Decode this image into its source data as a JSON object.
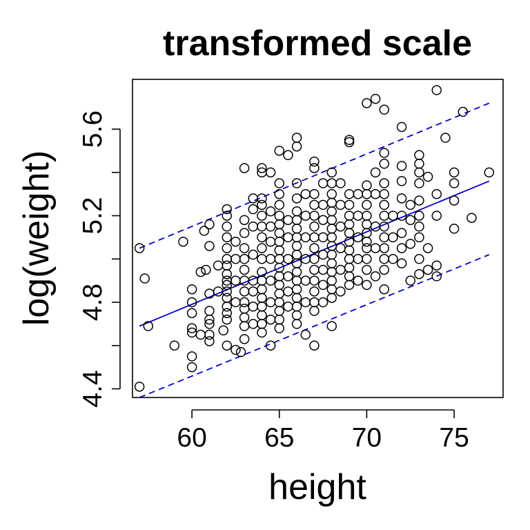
{
  "chart_data": {
    "type": "scatter",
    "title": "transformed scale",
    "xlabel": "height",
    "ylabel": "log(weight)",
    "xlim": [
      56.6,
      77.8
    ],
    "ylim": [
      4.36,
      5.83
    ],
    "x_ticks": [
      60,
      65,
      70,
      75
    ],
    "x_tick_labels": [
      "60",
      "65",
      "70",
      "75"
    ],
    "y_ticks": [
      4.4,
      4.6,
      4.8,
      5.0,
      5.2,
      5.4,
      5.6
    ],
    "y_tick_labels": [
      "4.4",
      "",
      "4.8",
      "",
      "5.2",
      "",
      "5.6"
    ],
    "grid": false,
    "colors": {
      "points": "#000000",
      "fit_line": "#0000cc",
      "prediction_band": "#0000cc"
    },
    "fit_line": {
      "x": [
        57,
        77
      ],
      "y": [
        4.69,
        5.36
      ]
    },
    "prediction_upper": {
      "x": [
        57,
        77
      ],
      "y": [
        5.05,
        5.72
      ]
    },
    "prediction_lower": {
      "x": [
        57,
        77
      ],
      "y": [
        4.36,
        5.02
      ]
    },
    "points": [
      [
        57,
        4.41
      ],
      [
        57,
        5.05
      ],
      [
        57.3,
        4.91
      ],
      [
        57.5,
        4.69
      ],
      [
        59,
        4.6
      ],
      [
        59.5,
        5.08
      ],
      [
        60,
        4.55
      ],
      [
        60,
        4.5
      ],
      [
        60,
        4.66
      ],
      [
        60,
        4.68
      ],
      [
        60,
        4.75
      ],
      [
        60,
        4.8
      ],
      [
        60,
        4.86
      ],
      [
        60.5,
        4.65
      ],
      [
        60.5,
        4.94
      ],
      [
        60.7,
        5.13
      ],
      [
        60.8,
        4.95
      ],
      [
        61,
        4.62
      ],
      [
        61,
        4.65
      ],
      [
        61,
        4.7
      ],
      [
        61,
        4.72
      ],
      [
        61,
        4.76
      ],
      [
        61,
        4.84
      ],
      [
        61,
        5.06
      ],
      [
        61,
        5.16
      ],
      [
        61.5,
        4.85
      ],
      [
        61.5,
        4.97
      ],
      [
        61.8,
        4.67
      ],
      [
        62,
        4.6
      ],
      [
        62,
        4.72
      ],
      [
        62,
        4.75
      ],
      [
        62,
        4.78
      ],
      [
        62,
        4.82
      ],
      [
        62,
        4.85
      ],
      [
        62,
        4.88
      ],
      [
        62,
        4.9
      ],
      [
        62,
        4.93
      ],
      [
        62,
        4.97
      ],
      [
        62,
        5.0
      ],
      [
        62,
        5.05
      ],
      [
        62,
        5.1
      ],
      [
        62,
        5.15
      ],
      [
        62,
        5.2
      ],
      [
        62,
        5.23
      ],
      [
        62.5,
        4.58
      ],
      [
        62.5,
        4.8
      ],
      [
        62.5,
        4.9
      ],
      [
        62.5,
        5.0
      ],
      [
        62.5,
        5.08
      ],
      [
        62.8,
        4.57
      ],
      [
        63,
        4.63
      ],
      [
        63,
        4.69
      ],
      [
        63,
        4.73
      ],
      [
        63,
        4.77
      ],
      [
        63,
        4.8
      ],
      [
        63,
        4.85
      ],
      [
        63,
        4.9
      ],
      [
        63,
        4.95
      ],
      [
        63,
        5.0
      ],
      [
        63,
        5.05
      ],
      [
        63,
        5.12
      ],
      [
        63,
        5.18
      ],
      [
        63,
        5.42
      ],
      [
        63.5,
        4.7
      ],
      [
        63.5,
        4.78
      ],
      [
        63.5,
        4.85
      ],
      [
        63.5,
        4.9
      ],
      [
        63.5,
        5.02
      ],
      [
        63.5,
        5.15
      ],
      [
        63.5,
        5.23
      ],
      [
        63.5,
        5.28
      ],
      [
        64,
        4.66
      ],
      [
        64,
        4.7
      ],
      [
        64,
        4.74
      ],
      [
        64,
        4.78
      ],
      [
        64,
        4.82
      ],
      [
        64,
        4.86
      ],
      [
        64,
        4.9
      ],
      [
        64,
        4.94
      ],
      [
        64,
        5.0
      ],
      [
        64,
        5.05
      ],
      [
        64,
        5.1
      ],
      [
        64,
        5.15
      ],
      [
        64,
        5.2
      ],
      [
        64,
        5.25
      ],
      [
        64,
        5.28
      ],
      [
        64,
        5.42
      ],
      [
        64,
        5.4
      ],
      [
        64.5,
        4.6
      ],
      [
        64.5,
        4.72
      ],
      [
        64.5,
        4.8
      ],
      [
        64.5,
        4.9
      ],
      [
        64.5,
        5.0
      ],
      [
        64.5,
        5.08
      ],
      [
        64.5,
        5.15
      ],
      [
        64.5,
        5.22
      ],
      [
        64.5,
        5.4
      ],
      [
        65,
        4.68
      ],
      [
        65,
        4.72
      ],
      [
        65,
        4.76
      ],
      [
        65,
        4.8
      ],
      [
        65,
        4.84
      ],
      [
        65,
        4.88
      ],
      [
        65,
        4.92
      ],
      [
        65,
        4.96
      ],
      [
        65,
        5.0
      ],
      [
        65,
        5.04
      ],
      [
        65,
        5.08
      ],
      [
        65,
        5.12
      ],
      [
        65,
        5.16
      ],
      [
        65,
        5.2
      ],
      [
        65,
        5.25
      ],
      [
        65,
        5.3
      ],
      [
        65,
        5.35
      ],
      [
        65,
        5.5
      ],
      [
        65.5,
        4.78
      ],
      [
        65.5,
        4.85
      ],
      [
        65.5,
        4.92
      ],
      [
        65.5,
        5.0
      ],
      [
        65.5,
        5.1
      ],
      [
        65.5,
        5.18
      ],
      [
        65.5,
        5.48
      ],
      [
        66,
        4.7
      ],
      [
        66,
        4.74
      ],
      [
        66,
        4.78
      ],
      [
        66,
        4.82
      ],
      [
        66,
        4.86
      ],
      [
        66,
        4.9
      ],
      [
        66,
        4.94
      ],
      [
        66,
        4.98
      ],
      [
        66,
        5.02
      ],
      [
        66,
        5.06
      ],
      [
        66,
        5.1
      ],
      [
        66,
        5.14
      ],
      [
        66,
        5.18
      ],
      [
        66,
        5.22
      ],
      [
        66,
        5.28
      ],
      [
        66,
        5.35
      ],
      [
        66,
        5.52
      ],
      [
        66,
        5.56
      ],
      [
        66.5,
        4.65
      ],
      [
        66.5,
        4.8
      ],
      [
        66.5,
        4.9
      ],
      [
        66.5,
        5.0
      ],
      [
        66.5,
        5.1
      ],
      [
        66.5,
        5.2
      ],
      [
        66.5,
        5.3
      ],
      [
        67,
        4.6
      ],
      [
        67,
        4.76
      ],
      [
        67,
        4.8
      ],
      [
        67,
        4.85
      ],
      [
        67,
        4.9
      ],
      [
        67,
        4.95
      ],
      [
        67,
        5.0
      ],
      [
        67,
        5.05
      ],
      [
        67,
        5.1
      ],
      [
        67,
        5.15
      ],
      [
        67,
        5.2
      ],
      [
        67,
        5.25
      ],
      [
        67,
        5.3
      ],
      [
        67,
        5.42
      ],
      [
        67,
        5.45
      ],
      [
        67.5,
        4.8
      ],
      [
        67.5,
        4.88
      ],
      [
        67.5,
        4.95
      ],
      [
        67.5,
        5.02
      ],
      [
        67.5,
        5.1
      ],
      [
        67.5,
        5.18
      ],
      [
        67.5,
        5.25
      ],
      [
        67.5,
        5.35
      ],
      [
        68,
        4.69
      ],
      [
        68,
        4.82
      ],
      [
        68,
        4.86
      ],
      [
        68,
        4.9
      ],
      [
        68,
        4.94
      ],
      [
        68,
        4.98
      ],
      [
        68,
        5.02
      ],
      [
        68,
        5.06
      ],
      [
        68,
        5.1
      ],
      [
        68,
        5.14
      ],
      [
        68,
        5.18
      ],
      [
        68,
        5.22
      ],
      [
        68,
        5.26
      ],
      [
        68,
        5.3
      ],
      [
        68,
        5.35
      ],
      [
        68,
        5.4
      ],
      [
        68.5,
        4.85
      ],
      [
        68.5,
        4.95
      ],
      [
        68.5,
        5.05
      ],
      [
        68.5,
        5.15
      ],
      [
        68.5,
        5.25
      ],
      [
        68.5,
        5.35
      ],
      [
        69,
        4.88
      ],
      [
        69,
        4.92
      ],
      [
        69,
        4.96
      ],
      [
        69,
        5.0
      ],
      [
        69,
        5.04
      ],
      [
        69,
        5.08
      ],
      [
        69,
        5.12
      ],
      [
        69,
        5.16
      ],
      [
        69,
        5.2
      ],
      [
        69,
        5.25
      ],
      [
        69,
        5.3
      ],
      [
        69,
        5.54
      ],
      [
        69,
        5.55
      ],
      [
        69.5,
        4.9
      ],
      [
        69.5,
        5.0
      ],
      [
        69.5,
        5.1
      ],
      [
        69.5,
        5.2
      ],
      [
        69.5,
        5.3
      ],
      [
        70,
        4.88
      ],
      [
        70,
        4.95
      ],
      [
        70,
        5.0
      ],
      [
        70,
        5.05
      ],
      [
        70,
        5.08
      ],
      [
        70,
        5.12
      ],
      [
        70,
        5.16
      ],
      [
        70,
        5.2
      ],
      [
        70,
        5.25
      ],
      [
        70,
        5.3
      ],
      [
        70,
        5.34
      ],
      [
        70,
        5.72
      ],
      [
        70.5,
        4.92
      ],
      [
        70.5,
        5.05
      ],
      [
        70.5,
        5.15
      ],
      [
        70.5,
        5.3
      ],
      [
        70.5,
        5.4
      ],
      [
        70.5,
        5.74
      ],
      [
        71,
        4.86
      ],
      [
        71,
        4.95
      ],
      [
        71,
        5.0
      ],
      [
        71,
        5.05
      ],
      [
        71,
        5.1
      ],
      [
        71,
        5.15
      ],
      [
        71,
        5.2
      ],
      [
        71,
        5.25
      ],
      [
        71,
        5.3
      ],
      [
        71,
        5.35
      ],
      [
        71,
        5.44
      ],
      [
        71,
        5.49
      ],
      [
        71,
        5.69
      ],
      [
        71.5,
        5.0
      ],
      [
        71.5,
        5.1
      ],
      [
        71.5,
        5.2
      ],
      [
        72,
        4.98
      ],
      [
        72,
        5.05
      ],
      [
        72,
        5.12
      ],
      [
        72,
        5.2
      ],
      [
        72,
        5.28
      ],
      [
        72,
        5.36
      ],
      [
        72,
        5.43
      ],
      [
        72,
        5.61
      ],
      [
        72.5,
        4.9
      ],
      [
        72.5,
        5.07
      ],
      [
        72.5,
        5.18
      ],
      [
        72.5,
        5.25
      ],
      [
        73,
        4.93
      ],
      [
        73,
        5.0
      ],
      [
        73,
        5.1
      ],
      [
        73,
        5.15
      ],
      [
        73,
        5.2
      ],
      [
        73,
        5.27
      ],
      [
        73,
        5.35
      ],
      [
        73,
        5.4
      ],
      [
        73,
        5.44
      ],
      [
        73,
        5.48
      ],
      [
        73.5,
        4.95
      ],
      [
        73.5,
        5.05
      ],
      [
        73.5,
        5.38
      ],
      [
        74,
        4.92
      ],
      [
        74,
        4.97
      ],
      [
        74,
        5.2
      ],
      [
        74,
        5.3
      ],
      [
        74,
        5.78
      ],
      [
        74.5,
        5.56
      ],
      [
        75,
        5.14
      ],
      [
        75,
        5.27
      ],
      [
        75,
        5.35
      ],
      [
        75,
        5.4
      ],
      [
        75.5,
        5.68
      ],
      [
        76,
        5.19
      ],
      [
        77,
        5.4
      ]
    ]
  }
}
